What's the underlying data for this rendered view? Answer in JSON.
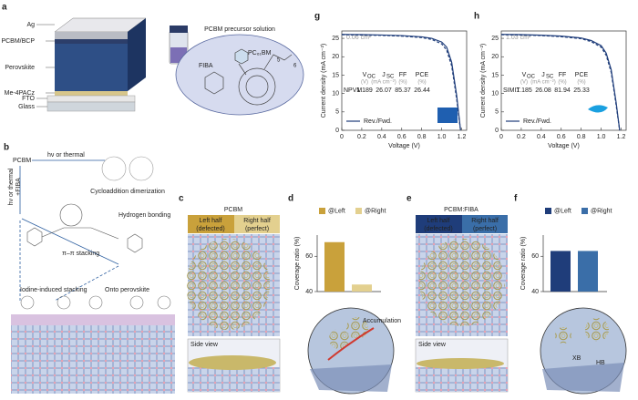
{
  "panel_a": {
    "letter": "a",
    "layers": [
      "Ag",
      "PCBM/BCP",
      "Perovskite",
      "Me-4PACz",
      "FTO",
      "Glass"
    ],
    "solution_title": "PCBM precursor solution",
    "fiba": "FIBA",
    "pcbm": "PC₆₁BM",
    "positions": [
      "5",
      "6"
    ]
  },
  "panel_b": {
    "letter": "b",
    "pcbm": "PCBM",
    "route_top": "hν or thermal",
    "dimer": "Cycloaddition dimerization",
    "route_left": "hν or thermal",
    "route_left_add": "+FIBA",
    "hbond": "Hydrogen bonding",
    "stacking": "π–π stacking",
    "iodine": "Iodine-induced stacking",
    "onto": "Onto perovskite"
  },
  "panel_c": {
    "letter": "c",
    "title": "PCBM",
    "left": "Left half",
    "left_sub": "(defected)",
    "right": "Right half",
    "right_sub": "(perfect)",
    "side": "Side view"
  },
  "panel_d": {
    "letter": "d",
    "annotation": "Accumulation"
  },
  "panel_e": {
    "letter": "e",
    "title": "PCBM:FIBA",
    "left": "Left half",
    "left_sub": "(defected)",
    "right": "Right half",
    "right_sub": "(perfect)",
    "side": "Side view"
  },
  "panel_f": {
    "letter": "f",
    "annotations": [
      "XB",
      "HB"
    ]
  },
  "chart_data": [
    {
      "type": "line",
      "panel_label": "g",
      "area_label": "0.06 cm²",
      "xlabel": "Voltage (V)",
      "ylabel": "Current density (mA cm⁻²)",
      "x": [
        0,
        0.2,
        0.4,
        0.6,
        0.8,
        0.9,
        1.0,
        1.05,
        1.1,
        1.15,
        1.189
      ],
      "series": [
        {
          "color": "#1f3d7a",
          "dashed": false,
          "values": [
            26.07,
            26.0,
            25.9,
            25.75,
            25.4,
            25.0,
            24.0,
            22.6,
            18.5,
            9.5,
            0
          ]
        },
        {
          "color": "#1f3d7a",
          "dashed": true,
          "values": [
            26.0,
            25.9,
            25.8,
            25.6,
            25.2,
            24.7,
            23.5,
            21.8,
            17.5,
            8.5,
            0
          ]
        }
      ],
      "xlim": [
        0,
        1.25
      ],
      "xticks": [
        0,
        0.2,
        0.4,
        0.6,
        0.8,
        {
          "value": 1,
          "label": "1.0"
        },
        1.2
      ],
      "ylim": [
        0,
        27
      ],
      "yticks": [
        0,
        5,
        10,
        15,
        20,
        25
      ],
      "legend": "Rev./Fwd.",
      "table": {
        "headers": [
          {
            "main": "V",
            "sub": "OC"
          },
          {
            "main": "J",
            "sub": "SC"
          },
          {
            "main": "FF",
            "sub": ""
          },
          {
            "main": "PCE",
            "sub": ""
          }
        ],
        "units": [
          "(V)",
          "(mA cm⁻²)",
          "(%)",
          "(%)"
        ],
        "row_label": "NPVM",
        "values": [
          1.189,
          26.07,
          85.37,
          26.44
        ]
      }
    },
    {
      "type": "line",
      "panel_label": "h",
      "area_label": "1.03 cm²",
      "xlabel": "Voltage (V)",
      "ylabel": "Current density (mA cm⁻²)",
      "x": [
        0,
        0.2,
        0.4,
        0.6,
        0.8,
        0.9,
        1.0,
        1.05,
        1.1,
        1.15,
        1.185
      ],
      "series": [
        {
          "color": "#1f3d7a",
          "dashed": false,
          "values": [
            26.08,
            26.0,
            25.85,
            25.6,
            25.1,
            24.4,
            23.0,
            21.0,
            16.5,
            7.5,
            0
          ]
        },
        {
          "color": "#1f3d7a",
          "dashed": true,
          "values": [
            26.0,
            25.9,
            25.75,
            25.45,
            24.9,
            24.1,
            22.6,
            20.4,
            15.8,
            6.8,
            0
          ]
        }
      ],
      "xlim": [
        0,
        1.25
      ],
      "xticks": [
        0,
        0.2,
        0.4,
        0.6,
        0.8,
        {
          "value": 1,
          "label": "1.0"
        },
        1.2
      ],
      "ylim": [
        0,
        27
      ],
      "yticks": [
        0,
        5,
        10,
        15,
        20,
        25
      ],
      "legend": "Rev./Fwd.",
      "table": {
        "headers": [
          {
            "main": "V",
            "sub": "OC"
          },
          {
            "main": "J",
            "sub": "SC"
          },
          {
            "main": "FF",
            "sub": ""
          },
          {
            "main": "PCE",
            "sub": ""
          }
        ],
        "units": [
          "(V)",
          "(mA cm⁻²)",
          "(%)",
          "(%)"
        ],
        "row_label": "SIMIT",
        "values": [
          1.185,
          26.08,
          81.94,
          25.33
        ]
      }
    },
    {
      "type": "bar",
      "ylabel": "Coverage ratio (%)",
      "ylim": [
        40,
        72
      ],
      "yticks": [
        40,
        60
      ],
      "series": [
        {
          "name": "@Left",
          "color": "#c9a13b",
          "values": [
            68
          ]
        },
        {
          "name": "@Right",
          "color": "#e3d08f",
          "values": [
            44
          ]
        }
      ]
    },
    {
      "type": "bar",
      "ylabel": "Coverage ratio (%)",
      "ylim": [
        40,
        72
      ],
      "yticks": [
        40,
        60
      ],
      "series": [
        {
          "name": "@Left",
          "color": "#1f3d7a",
          "values": [
            63
          ]
        },
        {
          "name": "@Right",
          "color": "#3a6ea8",
          "values": [
            63
          ]
        }
      ]
    }
  ]
}
